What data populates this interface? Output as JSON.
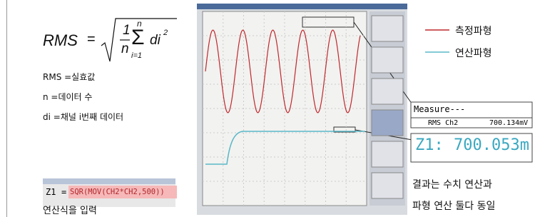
{
  "formula": {
    "lhs": "RMS",
    "eq": "=",
    "num": "1",
    "den": "n",
    "sum_top": "n",
    "sum_bottom": "i=1",
    "term": "di",
    "power": "2"
  },
  "definitions": [
    "RMS =실효값",
    "n =데이터 수",
    "di =채널 i번째 데이터"
  ],
  "input": {
    "name": "Z1",
    "eq": "=",
    "expression": "SQR(MOV(CH2*CH2,500))",
    "caption": "연산식을 입력"
  },
  "legend": [
    {
      "name": "측정파형",
      "color": "#c0282d"
    },
    {
      "name": "연산파형",
      "color": "#5ab8c8"
    }
  ],
  "measure": {
    "title": "Measure---",
    "label": "RMS Ch2",
    "value": "700.134mV"
  },
  "result": {
    "label": "Z1:",
    "value": "700.053m"
  },
  "note": [
    "결과는 수치 연산과",
    "파형 연산 둘다 동일"
  ]
}
